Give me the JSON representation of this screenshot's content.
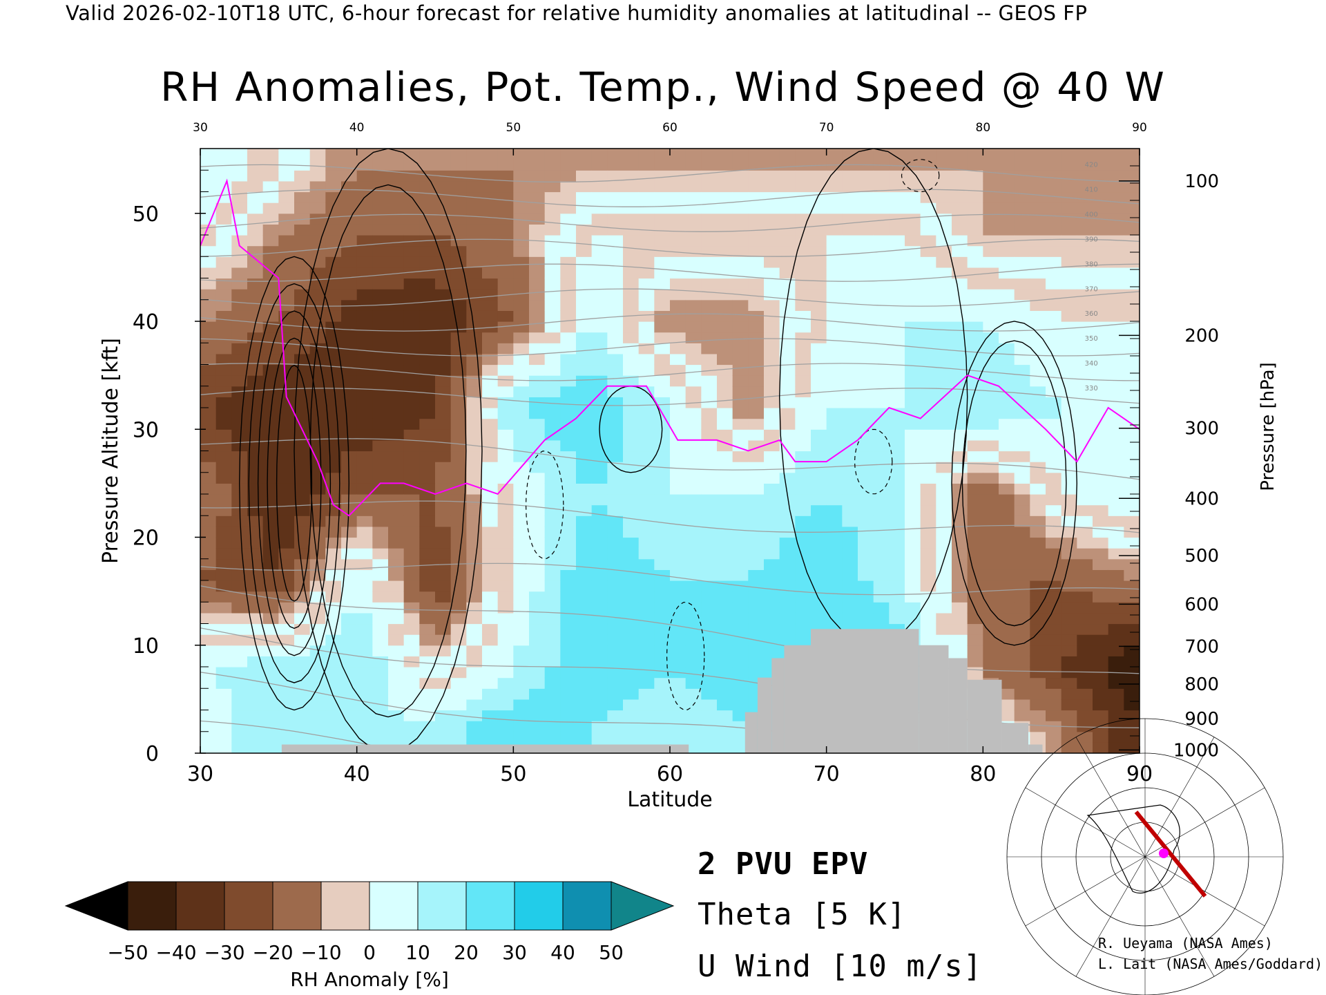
{
  "header": "Valid 2026-02-10T18 UTC, 6-hour forecast for relative humidity anomalies at latitudinal -- GEOS FP",
  "colors": {
    "epv": "#ff00ff",
    "theta": "#a0a0a0",
    "wind": "#000000",
    "terrain": "#bebebe",
    "map_track": "#c00000"
  },
  "legend": {
    "epv": "2 PVU EPV",
    "theta": "Theta [5 K]",
    "wind": "U Wind [10 m/s]"
  },
  "credits": [
    "R. Ueyama (NASA Ames)",
    "L. Lait (NASA Ames/Goddard)"
  ],
  "chart_data": {
    "type": "heatmap",
    "title": "RH Anomalies, Pot. Temp., Wind Speed @ 40 W",
    "xlabel": "Latitude",
    "ylabel": "Pressure Altitude [kft]",
    "y2label": "Pressure [hPa]",
    "xlim": [
      30,
      90
    ],
    "ylim": [
      0,
      56
    ],
    "x_ticks": [
      30,
      40,
      50,
      60,
      70,
      80,
      90
    ],
    "y_ticks": [
      0,
      10,
      20,
      30,
      40,
      50
    ],
    "pressure_ticks": [
      {
        "label": "100",
        "kft": 53.0
      },
      {
        "label": "200",
        "kft": 38.7
      },
      {
        "label": "300",
        "kft": 30.1
      },
      {
        "label": "400",
        "kft": 23.6
      },
      {
        "label": "500",
        "kft": 18.3
      },
      {
        "label": "600",
        "kft": 13.8
      },
      {
        "label": "700",
        "kft": 9.9
      },
      {
        "label": "800",
        "kft": 6.4
      },
      {
        "label": "900",
        "kft": 3.2
      },
      {
        "label": "1000",
        "kft": 0.3
      }
    ],
    "colorbar": {
      "label": "RH Anomaly [%]",
      "ticks": [
        "−50",
        "−40",
        "−30",
        "−20",
        "−10",
        "0",
        "10",
        "20",
        "30",
        "40",
        "50"
      ],
      "colors": [
        "#3a1e0c",
        "#5e3219",
        "#7f4b2d",
        "#9d6a4c",
        "#bd9179",
        "#e6cdbf",
        "#d8ffff",
        "#a6f4fb",
        "#62e6f7",
        "#22cce9",
        "#0f8fb0"
      ],
      "under_color": "#000000",
      "over_color": "#11858a"
    },
    "rh_anomaly_field": {
      "lats": [
        30,
        35,
        40,
        45,
        50,
        55,
        60,
        65,
        70,
        75,
        80,
        85,
        90
      ],
      "levels_kft": [
        2,
        8,
        16,
        24,
        32,
        40,
        48,
        54
      ],
      "values": [
        [
          10,
          30,
          20,
          25,
          40,
          30,
          20,
          30,
          30,
          30,
          10,
          -10,
          -40
        ],
        [
          20,
          25,
          30,
          0,
          20,
          40,
          30,
          40,
          40,
          40,
          -10,
          -30,
          -50
        ],
        [
          -20,
          -30,
          20,
          -30,
          10,
          40,
          30,
          30,
          40,
          20,
          -20,
          -20,
          -10
        ],
        [
          -10,
          -40,
          -20,
          -20,
          10,
          30,
          20,
          20,
          30,
          20,
          -20,
          10,
          20
        ],
        [
          -30,
          -40,
          -40,
          -30,
          30,
          40,
          20,
          -10,
          20,
          20,
          30,
          20,
          20
        ],
        [
          -10,
          -20,
          -35,
          -40,
          -20,
          20,
          -10,
          -10,
          10,
          20,
          20,
          10,
          10
        ],
        [
          10,
          -10,
          -20,
          -20,
          -10,
          10,
          10,
          10,
          10,
          10,
          -5,
          -5,
          -5
        ],
        [
          20,
          5,
          -10,
          -10,
          -10,
          -5,
          -5,
          -5,
          -5,
          -5,
          -5,
          -5,
          -5
        ]
      ]
    },
    "epv_2pvu": {
      "lat": [
        30,
        31.7,
        32.5,
        35,
        35.5,
        37.5,
        38.5,
        39.5,
        41.5,
        43,
        45,
        47,
        49,
        52,
        54,
        56,
        58.5,
        60.5,
        63,
        65,
        67,
        68,
        70,
        72,
        74,
        76,
        79,
        81,
        84,
        86,
        88,
        90
      ],
      "kft": [
        47,
        53,
        47,
        44,
        33,
        27,
        23,
        22,
        25,
        25,
        24,
        25,
        24,
        29,
        31,
        34,
        34,
        29,
        29,
        28,
        29,
        27,
        27,
        29,
        32,
        31,
        35,
        34,
        30,
        27,
        32,
        30
      ]
    },
    "theta_contours_K": [
      260,
      270,
      280,
      290,
      300,
      310,
      320,
      330,
      340,
      350,
      360,
      370,
      380,
      390,
      400,
      410,
      420
    ],
    "u_wind_contours_ms": [
      -10,
      0,
      10,
      20,
      30,
      40,
      50,
      60,
      70
    ],
    "terrain": [
      {
        "lat": [
          35.2,
          61.2
        ],
        "kft": 0.8
      },
      {
        "lat": [
          64.8,
          65.6
        ],
        "kft": 3.8
      },
      {
        "lat": [
          65.6,
          66.5
        ],
        "kft": 7.0
      },
      {
        "lat": [
          66.5,
          67.3
        ],
        "kft": 8.8
      },
      {
        "lat": [
          67.3,
          69.0
        ],
        "kft": 10.0
      },
      {
        "lat": [
          69.0,
          75.9
        ],
        "kft": 11.5
      },
      {
        "lat": [
          75.9,
          77.8
        ],
        "kft": 10.0
      },
      {
        "lat": [
          77.8,
          79.0
        ],
        "kft": 8.8
      },
      {
        "lat": [
          79.0,
          81.2
        ],
        "kft": 6.8
      },
      {
        "lat": [
          81.2,
          82.9
        ],
        "kft": 2.8
      },
      {
        "lat": [
          82.9,
          83.8
        ],
        "kft": 0.8
      }
    ]
  }
}
